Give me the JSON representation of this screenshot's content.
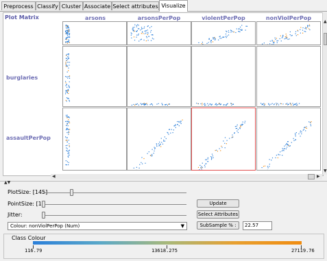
{
  "tabs": [
    {
      "label": "Preprocess",
      "active": false
    },
    {
      "label": "Classify",
      "active": false
    },
    {
      "label": "Cluster",
      "active": false
    },
    {
      "label": "Associate",
      "active": false
    },
    {
      "label": "Select attributes",
      "active": false
    },
    {
      "label": "Visualize",
      "active": true
    }
  ],
  "matrix": {
    "corner_label": "Plot Matrix",
    "columns": [
      "arsons",
      "arsonsPerPop",
      "violentPerPop",
      "nonViolPerPop"
    ],
    "rows": [
      "burglaries",
      "assaultPerPop"
    ],
    "selected_cell": "assaultPerPop × violentPerPop",
    "point_color": "#2b7fd9",
    "accent_color": "#f08c10"
  },
  "controls": {
    "plot_size_label": "PlotSize: [145]",
    "plot_size_value": 145,
    "point_size_label": "PointSize: [1]",
    "point_size_value": 1,
    "jitter_label": "Jitter:",
    "jitter_value": 0,
    "colour_select": "Colour: nonViolPerPop (Num)",
    "update_button": "Update",
    "select_attributes_button": "Select Attributes",
    "subsample_button": "SubSample % :",
    "subsample_value": "22.57"
  },
  "class_colour": {
    "title": "Class Colour",
    "min_label": "116.79",
    "mid_label": "13618.275",
    "max_label": "27119.76"
  }
}
